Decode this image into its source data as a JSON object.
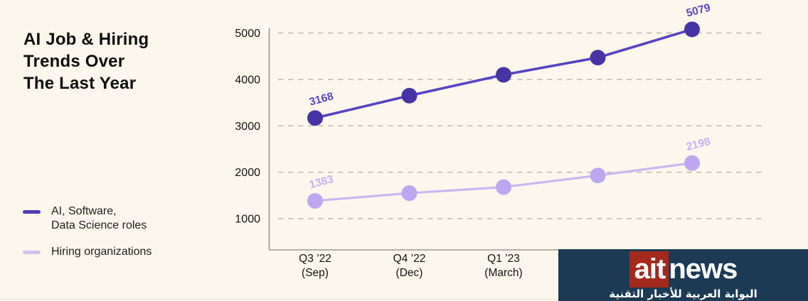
{
  "title_lines": [
    "AI Job & Hiring",
    "Trends Over",
    "The Last Year"
  ],
  "legend": {
    "items": [
      {
        "label_lines": [
          "AI, Software,",
          "Data Science roles"
        ],
        "swatch_color": "#4F3BB8"
      },
      {
        "label_lines": [
          "Hiring organizations",
          ""
        ],
        "swatch_color": "#CEC2EF"
      }
    ]
  },
  "chart_data": {
    "type": "line",
    "title": "AI Job & Hiring Trends Over The Last Year",
    "x_tick_labels": [
      [
        "Q3 ’22",
        "(Sep)"
      ],
      [
        "Q4 ’22",
        "(Dec)"
      ],
      [
        "Q1 ’23",
        "(March)"
      ]
    ],
    "num_points": 5,
    "y_ticks": [
      5000,
      4000,
      3000,
      2000,
      1000
    ],
    "ylim": [
      1000,
      5000
    ],
    "grid": "horizontal-dashed",
    "legend_position": "left",
    "series": [
      {
        "name": "AI, Software, Data Science roles",
        "line_color": "#5544C4",
        "point_color": "#4634A6",
        "label_color": "#5B48C4",
        "values": [
          3168,
          3650,
          4100,
          4470,
          5079
        ],
        "point_labels": [
          "3168",
          null,
          null,
          null,
          "5079"
        ]
      },
      {
        "name": "Hiring organizations",
        "line_color": "#C8B8F2",
        "point_color": "#BCA7F0",
        "label_color": "#C4B1F5",
        "values": [
          1383,
          1550,
          1680,
          1930,
          2198
        ],
        "point_labels": [
          "1383",
          null,
          null,
          null,
          "2198"
        ]
      }
    ],
    "axis_color": "#9C9992",
    "gridline_color": "#BDBAB2",
    "tick_label_color": "#121212"
  },
  "logo": {
    "brand_red_text": "ait",
    "brand_rest": "news",
    "tagline": "البوابة العربية للأخبار التقنية",
    "bg_color": "#1C3A54",
    "accent_color": "#A3291C"
  },
  "background_color": "#FCF7EC"
}
